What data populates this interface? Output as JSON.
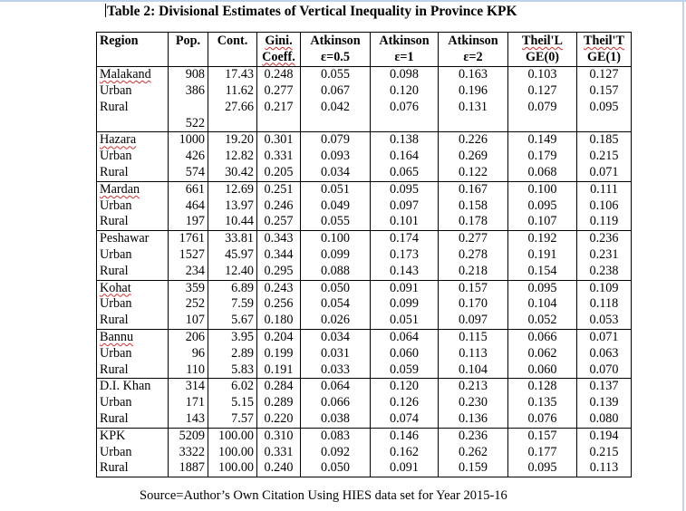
{
  "caption": "Table 2: Divisional Estimates of Vertical Inequality in Province KPK",
  "headers": [
    {
      "l1": "Region",
      "l2": ""
    },
    {
      "l1": "Pop.",
      "l2": ""
    },
    {
      "l1": "Cont.",
      "l2": ""
    },
    {
      "l1": "Gini.",
      "l2": "Coeff."
    },
    {
      "l1": "Atkinson",
      "l2": "ε=0.5"
    },
    {
      "l1": "Atkinson",
      "l2": "ε=1"
    },
    {
      "l1": "Atkinson",
      "l2": "ε=2"
    },
    {
      "l1": "Theil'L",
      "l2": "GE(0)"
    },
    {
      "l1": "Theil'T",
      "l2": "GE(1)"
    }
  ],
  "groups": [
    {
      "rows": [
        [
          "Malakand",
          "908",
          "17.43",
          "0.248",
          "0.055",
          "0.098",
          "0.163",
          "0.103",
          "0.127"
        ],
        [
          "Urban",
          "386",
          "11.62",
          "0.277",
          "0.067",
          "0.120",
          "0.196",
          "0.127",
          "0.157"
        ],
        [
          "Rural",
          "",
          "27.66",
          "0.217",
          "0.042",
          "0.076",
          "0.131",
          "0.079",
          "0.095"
        ],
        [
          "",
          "522",
          "",
          "",
          "",
          "",
          "",
          "",
          ""
        ]
      ]
    },
    {
      "rows": [
        [
          "Hazara",
          "1000",
          "19.20",
          "0.301",
          "0.079",
          "0.138",
          "0.226",
          "0.149",
          "0.185"
        ],
        [
          "Urban",
          "426",
          "12.82",
          "0.331",
          "0.093",
          "0.164",
          "0.269",
          "0.179",
          "0.215"
        ],
        [
          "Rural",
          "574",
          "30.42",
          "0.205",
          "0.034",
          "0.065",
          "0.122",
          "0.068",
          "0.071"
        ]
      ]
    },
    {
      "rows": [
        [
          "Mardan",
          "661",
          "12.69",
          "0.251",
          "0.051",
          "0.095",
          "0.167",
          "0.100",
          "0.111"
        ],
        [
          "Urban",
          "464",
          "13.97",
          "0.246",
          "0.049",
          "0.097",
          "0.158",
          "0.095",
          "0.106"
        ],
        [
          "Rural",
          "197",
          "10.44",
          "0.257",
          "0.055",
          "0.101",
          "0.178",
          "0.107",
          "0.119"
        ]
      ]
    },
    {
      "rows": [
        [
          "Peshawar",
          "1761",
          "33.81",
          "0.343",
          "0.100",
          "0.174",
          "0.277",
          "0.192",
          "0.236"
        ],
        [
          "Urban",
          "1527",
          "45.97",
          "0.344",
          "0.099",
          "0.173",
          "0.278",
          "0.191",
          "0.231"
        ],
        [
          "Rural",
          "234",
          "12.40",
          "0.295",
          "0.088",
          "0.143",
          "0.218",
          "0.154",
          "0.238"
        ]
      ]
    },
    {
      "rows": [
        [
          "Kohat",
          "359",
          "6.89",
          "0.243",
          "0.050",
          "0.091",
          "0.157",
          "0.095",
          "0.109"
        ],
        [
          "Urban",
          "252",
          "7.59",
          "0.256",
          "0.054",
          "0.099",
          "0.170",
          "0.104",
          "0.118"
        ],
        [
          "Rural",
          "107",
          "5.67",
          "0.180",
          "0.026",
          "0.051",
          "0.097",
          "0.052",
          "0.053"
        ]
      ]
    },
    {
      "rows": [
        [
          "Bannu",
          "206",
          "3.95",
          "0.204",
          "0.034",
          "0.064",
          "0.115",
          "0.066",
          "0.071"
        ],
        [
          "Urban",
          "96",
          "2.89",
          "0.199",
          "0.031",
          "0.060",
          "0.113",
          "0.062",
          "0.063"
        ],
        [
          "Rural",
          "110",
          "5.83",
          "0.191",
          "0.033",
          "0.059",
          "0.104",
          "0.060",
          "0.070"
        ]
      ]
    },
    {
      "rows": [
        [
          "D.I. Khan",
          "314",
          "6.02",
          "0.284",
          "0.064",
          "0.120",
          "0.213",
          "0.128",
          "0.137"
        ],
        [
          "Urban",
          "171",
          "5.15",
          "0.289",
          "0.066",
          "0.126",
          "0.230",
          "0.135",
          "0.139"
        ],
        [
          "Rural",
          "143",
          "7.57",
          "0.220",
          "0.038",
          "0.074",
          "0.136",
          "0.076",
          "0.080"
        ]
      ]
    },
    {
      "rows": [
        [
          "KPK",
          "5209",
          "100.00",
          "0.310",
          "0.083",
          "0.146",
          "0.236",
          "0.157",
          "0.194"
        ],
        [
          "Urban",
          "3322",
          "100.00",
          "0.331",
          "0.092",
          "0.162",
          "0.262",
          "0.177",
          "0.215"
        ],
        [
          "Rural",
          "1887",
          "100.00",
          "0.240",
          "0.050",
          "0.091",
          "0.159",
          "0.095",
          "0.113"
        ]
      ]
    }
  ],
  "source": "Source=Author’s Own Citation Using HIES data set for Year 2015-16"
}
